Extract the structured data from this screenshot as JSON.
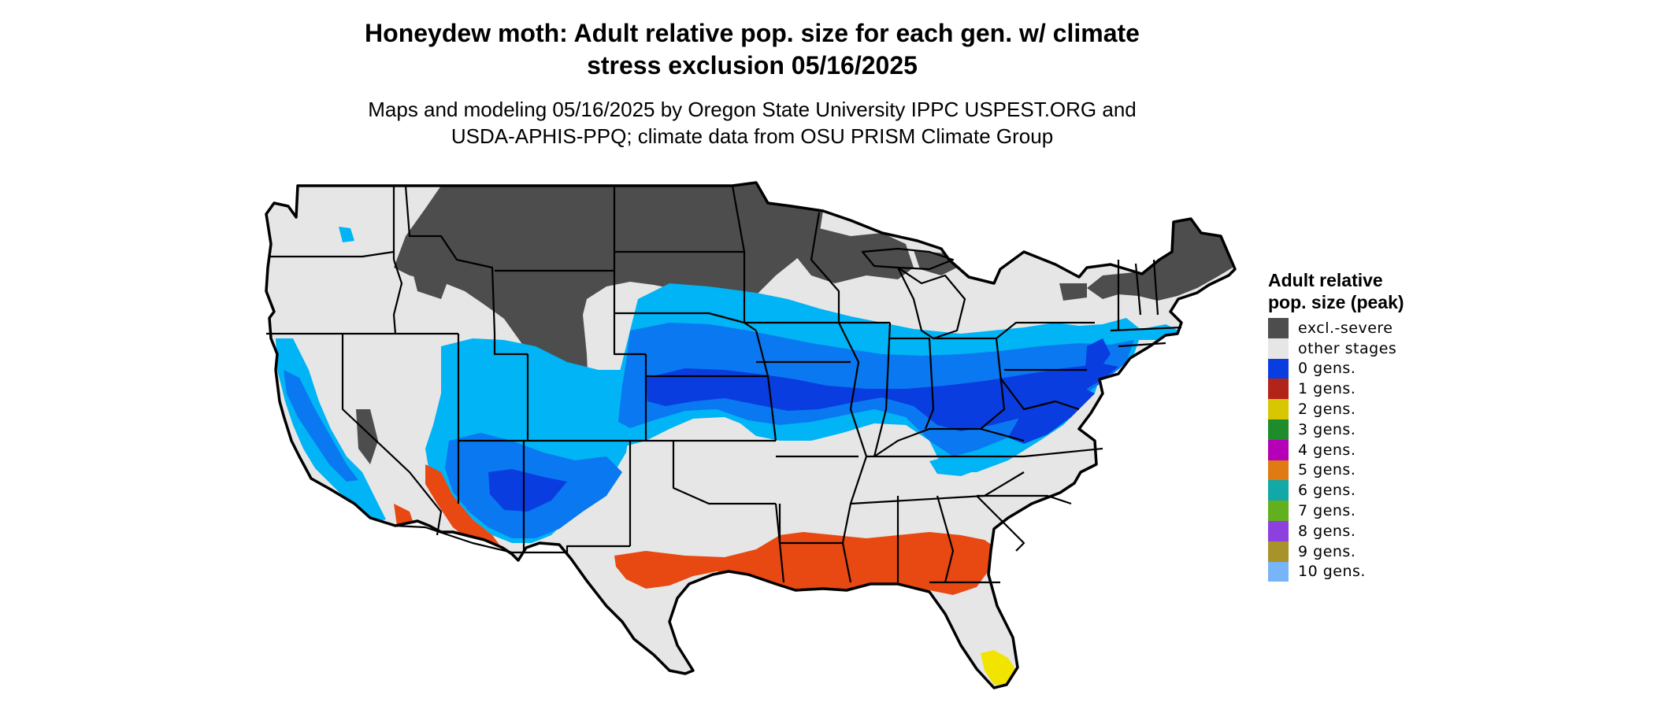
{
  "title_line1": "Honeydew moth: Adult relative pop. size for each gen. w/ climate",
  "title_line2": "stress exclusion 05/16/2025",
  "subtitle_line1": "Maps and modeling 05/16/2025 by Oregon State University IPPC USPEST.ORG and",
  "subtitle_line2": "USDA-APHIS-PPQ; climate data from OSU PRISM Climate Group",
  "legend": {
    "title": "Adult relative pop. size (peak)",
    "items": [
      {
        "label": "excl.-severe",
        "color": "#4d4d4d"
      },
      {
        "label": "other stages",
        "color": "#e6e6e6"
      },
      {
        "label": "0 gens.",
        "color": "#0a3de0"
      },
      {
        "label": "1 gens.",
        "color": "#b22418"
      },
      {
        "label": "2 gens.",
        "color": "#d8c600"
      },
      {
        "label": "3 gens.",
        "color": "#1e8c2a"
      },
      {
        "label": "4 gens.",
        "color": "#b500b8"
      },
      {
        "label": "5 gens.",
        "color": "#e07a12"
      },
      {
        "label": "6 gens.",
        "color": "#12a8a8"
      },
      {
        "label": "7 gens.",
        "color": "#62b01e"
      },
      {
        "label": "8 gens.",
        "color": "#8c40e0"
      },
      {
        "label": "9 gens.",
        "color": "#a8922a"
      },
      {
        "label": "10 gens.",
        "color": "#78b4f8"
      }
    ]
  },
  "map_colors": {
    "land": "#e6e6e6",
    "excluded": "#4d4d4d",
    "light_blue": "#00b4f5",
    "mid_blue": "#0a78f0",
    "deep_blue": "#0a3de0",
    "orange_red": "#e84812",
    "yellow": "#f0e400",
    "border": "#000000"
  }
}
